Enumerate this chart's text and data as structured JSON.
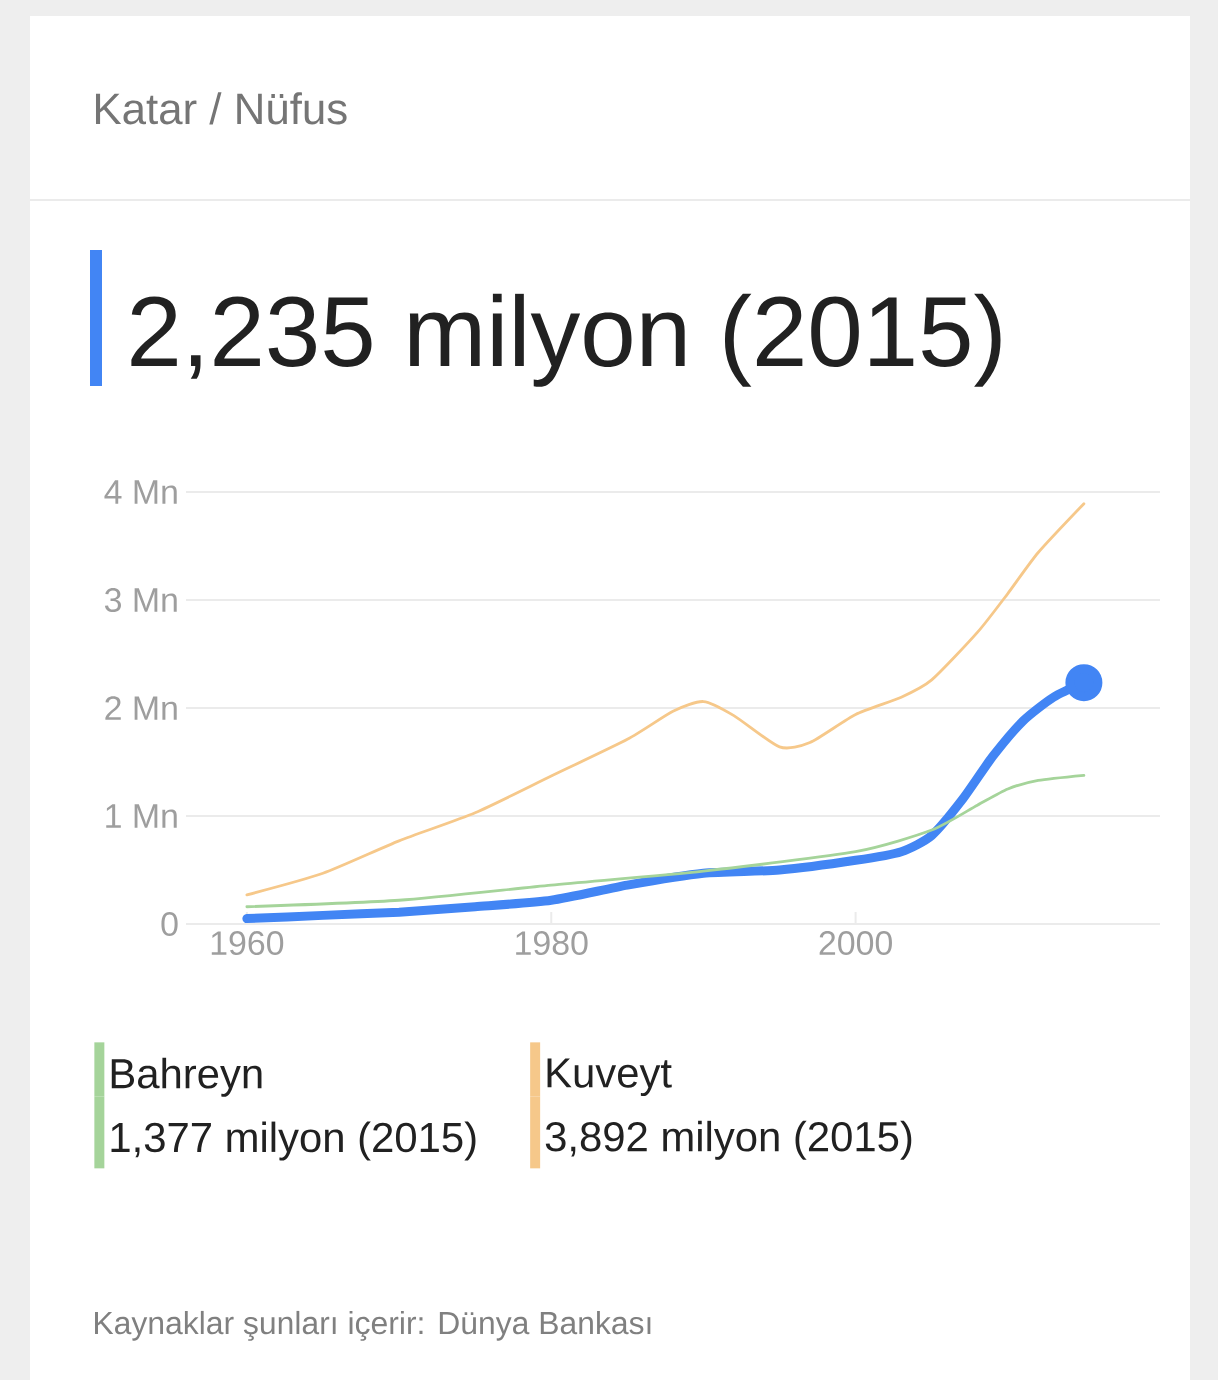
{
  "chart_data": {
    "type": "line",
    "title": "Katar / Nüfus",
    "subtitle": "2,235 milyon (2015)",
    "xlim": [
      1956,
      2020
    ],
    "xticks": [
      1960,
      1980,
      2000
    ],
    "ylim": [
      0,
      4
    ],
    "yticks": [
      0,
      {
        "value": 1,
        "label": "1 Mn"
      },
      {
        "value": 2,
        "label": "2 Mn"
      },
      {
        "value": 3,
        "label": "3 Mn"
      },
      {
        "value": 4,
        "label": "4 Mn"
      }
    ],
    "grid": "y",
    "legend": "bottom",
    "line_style": "solid",
    "series": [
      {
        "color": "#4285f4",
        "x": [
          1960,
          1965,
          1970,
          1975,
          1980,
          1985,
          1990,
          1995,
          2000,
          2003,
          2005,
          2007,
          2009,
          2011,
          2013,
          2015
        ],
        "values": [
          0.05,
          0.08,
          0.11,
          0.16,
          0.22,
          0.36,
          0.47,
          0.5,
          0.59,
          0.67,
          0.82,
          1.15,
          1.55,
          1.88,
          2.1,
          2.235
        ]
      },
      {
        "name": "Bahreyn",
        "color": "#a5d49a",
        "x": [
          1960,
          1970,
          1980,
          1990,
          2000,
          2005,
          2008,
          2010,
          2012,
          2015
        ],
        "values": [
          0.16,
          0.22,
          0.36,
          0.49,
          0.67,
          0.87,
          1.1,
          1.25,
          1.33,
          1.377
        ]
      },
      {
        "name": "Kuveyt",
        "color": "#f6c88a",
        "x": [
          1960,
          1965,
          1970,
          1975,
          1980,
          1985,
          1988,
          1990,
          1992,
          1995,
          1997,
          2000,
          2003,
          2005,
          2008,
          2010,
          2012,
          2015
        ],
        "values": [
          0.27,
          0.47,
          0.77,
          1.03,
          1.37,
          1.71,
          1.97,
          2.06,
          1.93,
          1.64,
          1.68,
          1.94,
          2.1,
          2.26,
          2.7,
          3.06,
          3.44,
          3.892
        ]
      }
    ],
    "annotations": [
      "1,377 milyon (2015)",
      "3,892 milyon (2015)",
      "Kaynaklar şunları içerir: Dünya Bankası"
    ]
  }
}
